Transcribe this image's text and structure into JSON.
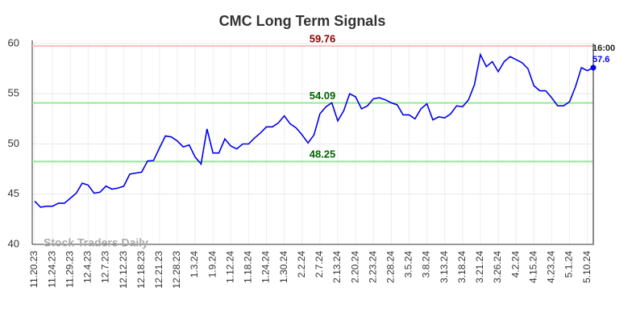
{
  "chart_data": {
    "type": "line",
    "title": "CMC Long Term Signals",
    "categories": [
      "11.20.23",
      null,
      null,
      "11.24.23",
      null,
      null,
      "11.29.23",
      null,
      null,
      "12.4.23",
      null,
      null,
      "12.7.23",
      null,
      null,
      "12.12.23",
      null,
      null,
      "12.18.23",
      null,
      null,
      "12.21.23",
      null,
      null,
      "12.28.23",
      null,
      null,
      "1.3.24",
      null,
      null,
      "1.9.24",
      null,
      null,
      "1.12.24",
      null,
      null,
      "1.18.24",
      null,
      null,
      "1.24.24",
      null,
      null,
      "1.30.24",
      null,
      null,
      "2.2.24",
      null,
      null,
      "2.7.24",
      null,
      null,
      "2.13.24",
      null,
      null,
      "2.20.24",
      null,
      null,
      "2.23.24",
      null,
      null,
      "2.28.24",
      null,
      null,
      "3.5.24",
      null,
      null,
      "3.8.24",
      null,
      null,
      "3.13.24",
      null,
      null,
      "3.18.24",
      null,
      null,
      "3.21.24",
      null,
      null,
      "3.26.24",
      null,
      null,
      "4.2.24",
      null,
      null,
      "4.15.24",
      null,
      null,
      "4.23.24",
      null,
      null,
      "5.1.24",
      null,
      null,
      "5.10.24",
      null
    ],
    "series": [
      {
        "color": "#0000ee",
        "values": [
          44.3,
          43.7,
          43.8,
          43.8,
          44.1,
          44.1,
          44.6,
          45.1,
          46.1,
          45.9,
          45.1,
          45.2,
          45.8,
          45.5,
          45.6,
          45.8,
          47.0,
          47.1,
          47.2,
          48.3,
          48.35,
          49.6,
          50.8,
          50.7,
          50.3,
          49.7,
          49.9,
          48.7,
          48.0,
          51.5,
          49.1,
          49.1,
          50.5,
          49.8,
          49.5,
          50.0,
          50.0,
          50.6,
          51.1,
          51.7,
          51.7,
          52.1,
          52.8,
          52.0,
          51.6,
          50.9,
          50.1,
          50.9,
          53.0,
          53.7,
          54.1,
          52.3,
          53.3,
          55.0,
          54.7,
          53.5,
          53.8,
          54.5,
          54.6,
          54.4,
          54.1,
          53.9,
          52.9,
          52.9,
          52.5,
          53.5,
          54.0,
          52.4,
          52.7,
          52.6,
          53.0,
          53.8,
          53.7,
          54.4,
          55.9,
          58.9,
          57.7,
          58.2,
          57.2,
          58.2,
          58.7,
          58.4,
          58.1,
          57.5,
          55.8,
          55.3,
          55.3,
          54.6,
          53.8,
          53.8,
          54.2,
          55.7,
          57.6,
          57.3,
          57.6
        ]
      }
    ],
    "hlines": [
      {
        "value": 59.76,
        "color": "#ffbfbf",
        "label_color": "#8b0000"
      },
      {
        "value": 54.09,
        "color": "#90ee90",
        "label_color": "#006400"
      },
      {
        "value": 48.25,
        "color": "#90ee90",
        "label_color": "#006400"
      }
    ],
    "last_time": "16:00",
    "watermark": "Stock Traders Daily",
    "ylim": [
      40,
      60
    ],
    "yticks": [
      40,
      45,
      50,
      55,
      60
    ],
    "grid": true
  }
}
